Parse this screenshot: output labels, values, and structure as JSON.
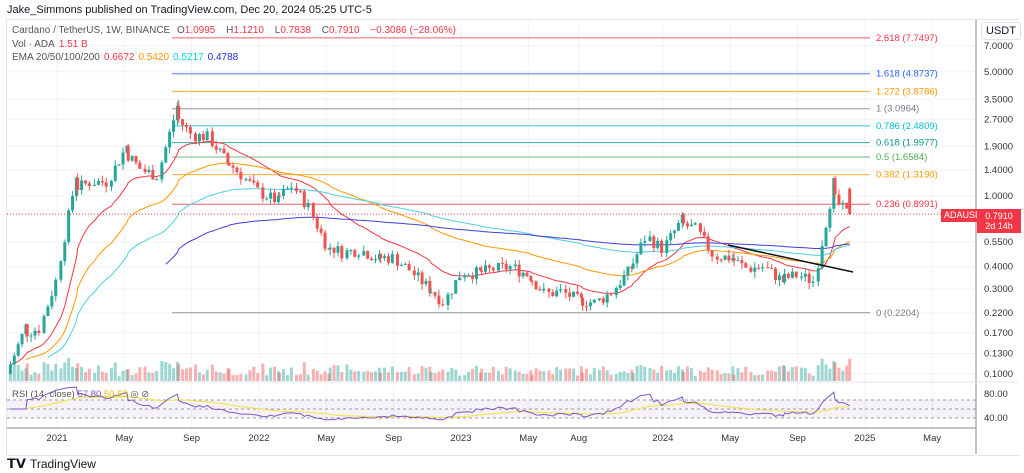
{
  "header": {
    "published": "Jake_Simmons published on TradingView.com, Dec 20, 2024 05:25 UTC-5"
  },
  "legend": {
    "symbol": "Cardano / TetherUS, 1W, BINANCE",
    "o_label": "O",
    "o": "1.0995",
    "h_label": "H",
    "h": "1.1210",
    "l_label": "L",
    "l": "0.7838",
    "c_label": "C",
    "c": "0.7910",
    "change": "−0.3086 (−28.06%)",
    "vol_label": "Vol · ADA",
    "vol": "1.51 B",
    "ema_label": "EMA 20/50/100/200",
    "ema20": "0.6672",
    "ema50": "0.5420",
    "ema100": "0.5217",
    "ema200": "0.4788"
  },
  "rsi": {
    "label": "RSI (14, close)",
    "value": "57.80",
    "ma": "50.53"
  },
  "axis": {
    "currency": "USDT",
    "symbol_tag": "ADAUSDT",
    "last_price": "0.7910",
    "countdown": "2d 14h"
  },
  "logo": "TradingView",
  "colors": {
    "up": "#26a69a",
    "down": "#ef5350",
    "ema20": "#f23645",
    "ema50": "#ff9800",
    "ema100": "#4dd0e1",
    "ema200": "#3f3fd8",
    "rsi": "#7e57c2",
    "rsima": "#f5e33b"
  },
  "chart_data": {
    "type": "candlestick",
    "title": "Cardano / TetherUS, 1W, BINANCE",
    "yscale": "log",
    "ylim": [
      0.09,
      8.5
    ],
    "y_ticks": [
      "7.0000",
      "5.0000",
      "3.5000",
      "2.7000",
      "1.9000",
      "1.4000",
      "1.0000",
      "0.5500",
      "0.4000",
      "0.3000",
      "0.2200",
      "0.1700",
      "0.1300",
      "0.1000"
    ],
    "x_ticks": [
      {
        "label": "2021",
        "month": 3
      },
      {
        "label": "May",
        "month": 7
      },
      {
        "label": "Sep",
        "month": 11
      },
      {
        "label": "2022",
        "month": 15
      },
      {
        "label": "May",
        "month": 19
      },
      {
        "label": "Sep",
        "month": 23
      },
      {
        "label": "2023",
        "month": 27
      },
      {
        "label": "May",
        "month": 31
      },
      {
        "label": "Aug",
        "month": 34
      },
      {
        "label": "2024",
        "month": 39
      },
      {
        "label": "May",
        "month": 43
      },
      {
        "label": "Sep",
        "month": 47
      },
      {
        "label": "2025",
        "month": 51
      },
      {
        "label": "May",
        "month": 55
      }
    ],
    "monthly_close_from_oct_2020": [
      0.1,
      0.17,
      0.18,
      0.35,
      1.1,
      1.2,
      1.2,
      1.8,
      1.4,
      1.3,
      2.85,
      2.2,
      2.15,
      1.6,
      1.3,
      1.05,
      0.95,
      1.15,
      0.85,
      0.53,
      0.48,
      0.5,
      0.45,
      0.45,
      0.38,
      0.31,
      0.25,
      0.37,
      0.37,
      0.39,
      0.4,
      0.36,
      0.28,
      0.29,
      0.26,
      0.25,
      0.29,
      0.38,
      0.6,
      0.5,
      0.7,
      0.65,
      0.46,
      0.45,
      0.39,
      0.4,
      0.34,
      0.36,
      0.33,
      1.0,
      0.79
    ],
    "fib_levels": [
      {
        "label": "2.618 (7.7497)",
        "price": 7.7497,
        "color": "#f23645"
      },
      {
        "label": "1.618 (4.8737)",
        "price": 4.8737,
        "color": "#2962ff"
      },
      {
        "label": "1.272 (3.8786)",
        "price": 3.8786,
        "color": "#ff9800"
      },
      {
        "label": "1 (3.0964)",
        "price": 3.0964,
        "color": "#787b86"
      },
      {
        "label": "0.786 (2.4809)",
        "price": 2.4809,
        "color": "#00bcd4"
      },
      {
        "label": "0.618 (1.9977)",
        "price": 1.9977,
        "color": "#089981"
      },
      {
        "label": "0.5 (1.6584)",
        "price": 1.6584,
        "color": "#4caf50"
      },
      {
        "label": "0.382 (1.3190)",
        "price": 1.319,
        "color": "#ff9800"
      },
      {
        "label": "0.236 (0.8991)",
        "price": 0.8991,
        "color": "#f23645"
      },
      {
        "label": "0 (0.2204)",
        "price": 0.2204,
        "color": "#787b86"
      }
    ],
    "rsi_ticks": [
      "80.00",
      "40.00"
    ]
  }
}
